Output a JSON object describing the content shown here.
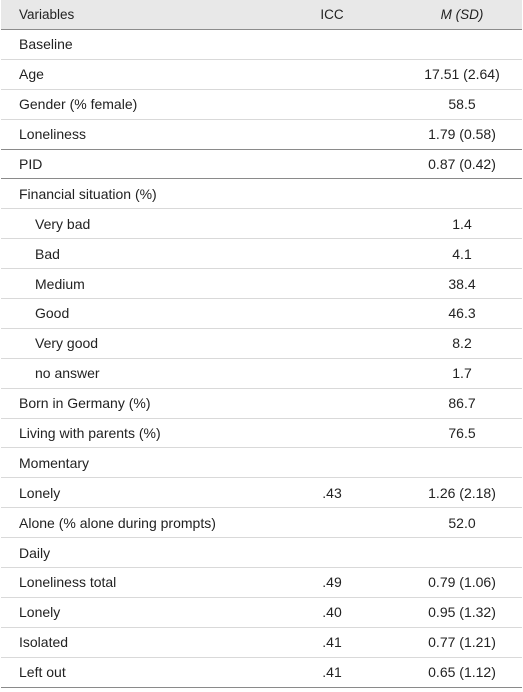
{
  "header": {
    "variables": "Variables",
    "icc": "ICC",
    "m_sd": "M (SD)"
  },
  "rows": [
    {
      "label": "Baseline",
      "icc": "",
      "m": "",
      "indent": false
    },
    {
      "label": "Age",
      "icc": "",
      "m": "17.51 (2.64)",
      "indent": false
    },
    {
      "label": "Gender (% female)",
      "icc": "",
      "m": "58.5",
      "indent": false
    },
    {
      "label": "Loneliness",
      "icc": "",
      "m": "1.79 (0.58)",
      "indent": false
    },
    {
      "label": "PID",
      "icc": "",
      "m": "0.87 (0.42)",
      "indent": false
    },
    {
      "label": "Financial situation (%)",
      "icc": "",
      "m": "",
      "indent": false
    },
    {
      "label": "Very bad",
      "icc": "",
      "m": "1.4",
      "indent": true
    },
    {
      "label": "Bad",
      "icc": "",
      "m": "4.1",
      "indent": true
    },
    {
      "label": "Medium",
      "icc": "",
      "m": "38.4",
      "indent": true
    },
    {
      "label": "Good",
      "icc": "",
      "m": "46.3",
      "indent": true
    },
    {
      "label": "Very good",
      "icc": "",
      "m": "8.2",
      "indent": true
    },
    {
      "label": "no answer",
      "icc": "",
      "m": "1.7",
      "indent": true
    },
    {
      "label": "Born in Germany (%)",
      "icc": "",
      "m": "86.7",
      "indent": false
    },
    {
      "label": "Living with parents (%)",
      "icc": "",
      "m": "76.5",
      "indent": false
    },
    {
      "label": "Momentary",
      "icc": "",
      "m": "",
      "indent": false
    },
    {
      "label": "Lonely",
      "icc": ".43",
      "m": "1.26 (2.18)",
      "indent": false
    },
    {
      "label": "Alone (% alone during prompts)",
      "icc": "",
      "m": "52.0",
      "indent": false
    },
    {
      "label": "Daily",
      "icc": "",
      "m": "",
      "indent": false
    },
    {
      "label": "Loneliness total",
      "icc": ".49",
      "m": "0.79 (1.06)",
      "indent": false
    },
    {
      "label": "Lonely",
      "icc": ".40",
      "m": "0.95 (1.32)",
      "indent": false
    },
    {
      "label": "Isolated",
      "icc": ".41",
      "m": "0.77 (1.21)",
      "indent": false
    },
    {
      "label": "Left out",
      "icc": ".41",
      "m": "0.65 (1.12)",
      "indent": false
    }
  ]
}
